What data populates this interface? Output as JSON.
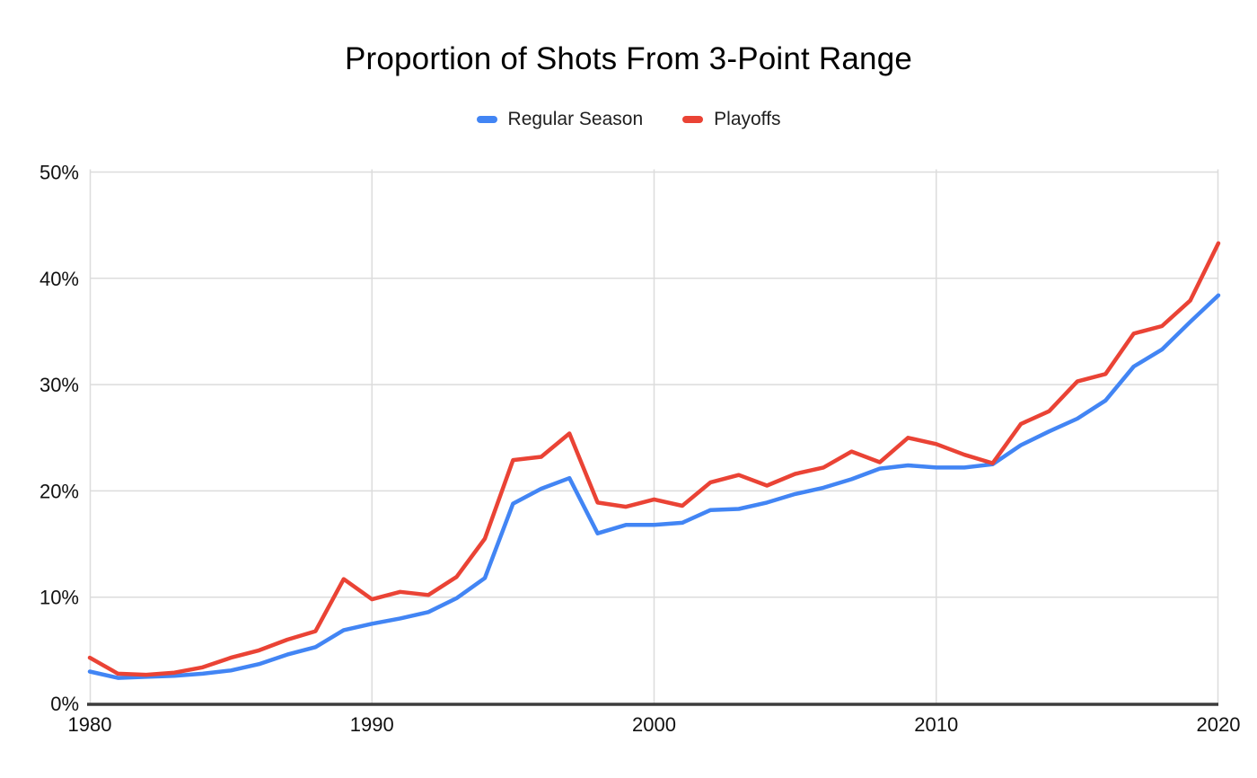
{
  "title": "Proportion of Shots From 3-Point Range",
  "chart_data": {
    "type": "line",
    "title": "Proportion of Shots From 3-Point Range",
    "xlabel": "",
    "ylabel": "",
    "ylim": [
      0,
      50
    ],
    "grid": true,
    "legend_position": "top",
    "gridline_color": "#dcdcdc",
    "axis_line_color": "#3c3c3c",
    "y_ticks": [
      {
        "value": 0,
        "label": "0%"
      },
      {
        "value": 10,
        "label": "10%"
      },
      {
        "value": 20,
        "label": "20%"
      },
      {
        "value": 30,
        "label": "30%"
      },
      {
        "value": 40,
        "label": "40%"
      },
      {
        "value": 50,
        "label": "50%"
      }
    ],
    "x_ticks": [
      {
        "value": 1980,
        "label": "1980"
      },
      {
        "value": 1990,
        "label": "1990"
      },
      {
        "value": 2000,
        "label": "2000"
      },
      {
        "value": 2010,
        "label": "2010"
      },
      {
        "value": 2020,
        "label": "2020"
      }
    ],
    "x": [
      1980,
      1981,
      1982,
      1983,
      1984,
      1985,
      1986,
      1987,
      1988,
      1989,
      1990,
      1991,
      1992,
      1993,
      1994,
      1995,
      1996,
      1997,
      1998,
      1999,
      2000,
      2001,
      2002,
      2003,
      2004,
      2005,
      2006,
      2007,
      2008,
      2009,
      2010,
      2011,
      2012,
      2013,
      2014,
      2015,
      2016,
      2017,
      2018,
      2019,
      2020
    ],
    "series": [
      {
        "name": "Regular Season",
        "color": "#4285F4",
        "values": [
          3.0,
          2.4,
          2.5,
          2.6,
          2.8,
          3.1,
          3.7,
          4.6,
          5.3,
          6.9,
          7.5,
          8.0,
          8.6,
          9.9,
          11.8,
          18.8,
          20.2,
          21.2,
          16.0,
          16.8,
          16.8,
          17.0,
          18.2,
          18.3,
          18.9,
          19.7,
          20.3,
          21.1,
          22.1,
          22.4,
          22.2,
          22.2,
          22.5,
          24.3,
          25.6,
          26.8,
          28.5,
          31.7,
          33.3,
          35.9,
          38.4
        ]
      },
      {
        "name": "Playoffs",
        "color": "#EA4335",
        "values": [
          4.3,
          2.8,
          2.7,
          2.9,
          3.4,
          4.3,
          5.0,
          6.0,
          6.8,
          11.7,
          9.8,
          10.5,
          10.2,
          11.9,
          15.5,
          22.9,
          23.2,
          25.4,
          18.9,
          18.5,
          19.2,
          18.6,
          20.8,
          21.5,
          20.5,
          21.6,
          22.2,
          23.7,
          22.7,
          25.0,
          24.4,
          23.4,
          22.6,
          26.3,
          27.5,
          30.3,
          31.0,
          34.8,
          35.5,
          37.9,
          43.3
        ]
      }
    ]
  }
}
